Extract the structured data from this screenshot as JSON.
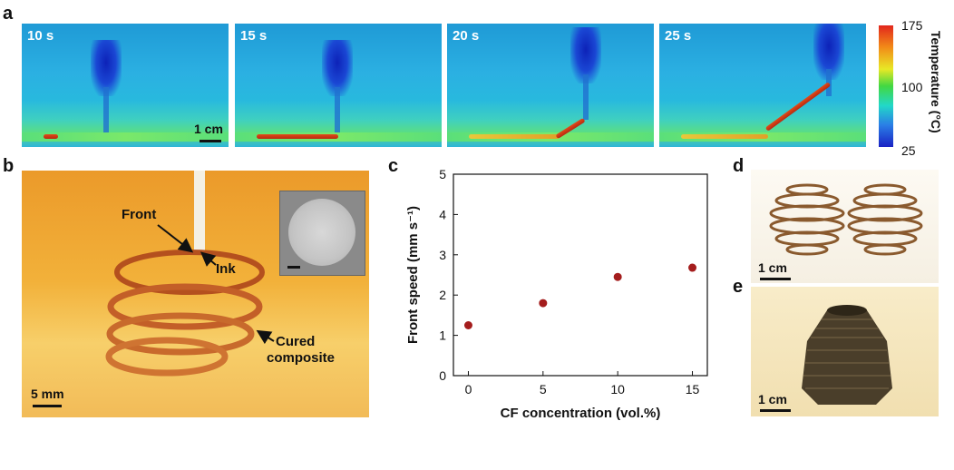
{
  "panels": {
    "a": "a",
    "b": "b",
    "c": "c",
    "d": "d",
    "e": "e"
  },
  "panel_a": {
    "frames": [
      "10 s",
      "15 s",
      "20 s",
      "25 s"
    ],
    "scale_label": "1 cm",
    "colorbar": {
      "label": "Temperature (°C)",
      "ticks": [
        "175",
        "100",
        "25"
      ],
      "colors": [
        "#e2261c",
        "#f28b18",
        "#e8e826",
        "#42d842",
        "#22d8c8",
        "#2a7ee6",
        "#1a22c4"
      ]
    }
  },
  "panel_b": {
    "labels": {
      "front": "Front",
      "ink": "Ink",
      "cured_line1": "Cured",
      "cured_line2": "composite"
    },
    "scale_label": "5 mm"
  },
  "panel_d": {
    "scale_label": "1 cm"
  },
  "panel_e": {
    "scale_label": "1 cm"
  },
  "chart_data": {
    "type": "scatter",
    "xlabel": "CF concentration (vol.%)",
    "ylabel": "Front speed (mm s⁻¹)",
    "x": [
      0,
      5,
      10,
      15
    ],
    "y": [
      1.25,
      1.8,
      2.45,
      2.68
    ],
    "xlim": [
      -1,
      16
    ],
    "ylim": [
      0,
      5
    ],
    "xticks": [
      "0",
      "5",
      "10",
      "15"
    ],
    "yticks": [
      "0",
      "1",
      "2",
      "3",
      "4",
      "5"
    ],
    "marker_color": "#a41d1d",
    "grid": false
  }
}
